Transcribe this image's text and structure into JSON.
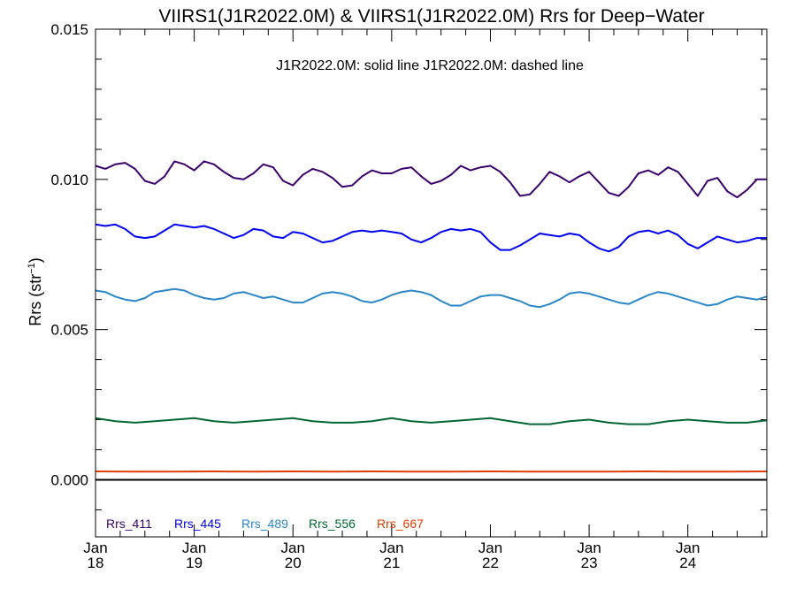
{
  "chart_data": {
    "type": "line",
    "title": "VIIRS1(J1R2022.0M) & VIIRS1(J1R2022.0M)  Rrs for Deep−Water",
    "subtitle": "J1R2022.0M: solid line   J1R2022.0M: dashed line",
    "ylabel": "Rrs (str",
    "ylabel_sup": "−1",
    "ylabel_close": ")",
    "xlim": [
      18,
      24.8
    ],
    "ylim": [
      -0.0019,
      0.015
    ],
    "yticks": [
      {
        "value": 0.0,
        "label": "0.000"
      },
      {
        "value": 0.005,
        "label": "0.005"
      },
      {
        "value": 0.01,
        "label": "0.010"
      },
      {
        "value": 0.015,
        "label": "0.015"
      }
    ],
    "xticks": [
      {
        "value": 18,
        "month": "Jan",
        "day": "18"
      },
      {
        "value": 19,
        "month": "Jan",
        "day": "19"
      },
      {
        "value": 20,
        "month": "Jan",
        "day": "20"
      },
      {
        "value": 21,
        "month": "Jan",
        "day": "21"
      },
      {
        "value": 22,
        "month": "Jan",
        "day": "22"
      },
      {
        "value": 23,
        "month": "Jan",
        "day": "23"
      },
      {
        "value": 24,
        "month": "Jan",
        "day": "24"
      }
    ],
    "zero_line": true,
    "grid": false,
    "legend_placement": "bottom-left",
    "series": [
      {
        "name": "Rrs_411",
        "color": "#3a006b",
        "x": [
          18.0,
          18.1,
          18.2,
          18.3,
          18.4,
          18.5,
          18.6,
          18.7,
          18.8,
          18.9,
          19.0,
          19.1,
          19.2,
          19.3,
          19.4,
          19.5,
          19.6,
          19.7,
          19.8,
          19.9,
          20.0,
          20.1,
          20.2,
          20.3,
          20.4,
          20.5,
          20.6,
          20.7,
          20.8,
          20.9,
          21.0,
          21.1,
          21.2,
          21.3,
          21.4,
          21.5,
          21.6,
          21.7,
          21.8,
          21.9,
          22.0,
          22.1,
          22.2,
          22.3,
          22.4,
          22.5,
          22.6,
          22.7,
          22.8,
          22.9,
          23.0,
          23.1,
          23.2,
          23.3,
          23.4,
          23.5,
          23.6,
          23.7,
          23.8,
          23.9,
          24.0,
          24.1,
          24.2,
          24.3,
          24.4,
          24.5,
          24.6,
          24.7,
          24.8
        ],
        "y": [
          0.01045,
          0.01035,
          0.0105,
          0.01055,
          0.01035,
          0.00995,
          0.00985,
          0.0101,
          0.0106,
          0.0105,
          0.0103,
          0.0106,
          0.0105,
          0.01025,
          0.01005,
          0.01,
          0.0102,
          0.0105,
          0.0104,
          0.00995,
          0.0098,
          0.01015,
          0.01035,
          0.01025,
          0.01005,
          0.00975,
          0.0098,
          0.0101,
          0.0103,
          0.0102,
          0.0102,
          0.01035,
          0.0104,
          0.0101,
          0.00985,
          0.00995,
          0.01015,
          0.01045,
          0.0103,
          0.0104,
          0.01045,
          0.01025,
          0.0099,
          0.00945,
          0.0095,
          0.00985,
          0.01025,
          0.0101,
          0.0099,
          0.0101,
          0.01025,
          0.0099,
          0.00955,
          0.00945,
          0.00975,
          0.0102,
          0.0103,
          0.01015,
          0.0104,
          0.01025,
          0.00985,
          0.00945,
          0.00995,
          0.01005,
          0.0096,
          0.0094,
          0.00965,
          0.01,
          0.01
        ]
      },
      {
        "name": "Rrs_445",
        "color": "#0000ee",
        "x": [
          18.0,
          18.1,
          18.2,
          18.3,
          18.4,
          18.5,
          18.6,
          18.7,
          18.8,
          18.9,
          19.0,
          19.1,
          19.2,
          19.3,
          19.4,
          19.5,
          19.6,
          19.7,
          19.8,
          19.9,
          20.0,
          20.1,
          20.2,
          20.3,
          20.4,
          20.5,
          20.6,
          20.7,
          20.8,
          20.9,
          21.0,
          21.1,
          21.2,
          21.3,
          21.4,
          21.5,
          21.6,
          21.7,
          21.8,
          21.9,
          22.0,
          22.1,
          22.2,
          22.3,
          22.4,
          22.5,
          22.6,
          22.7,
          22.8,
          22.9,
          23.0,
          23.1,
          23.2,
          23.3,
          23.4,
          23.5,
          23.6,
          23.7,
          23.8,
          23.9,
          24.0,
          24.1,
          24.2,
          24.3,
          24.4,
          24.5,
          24.6,
          24.7,
          24.8
        ],
        "y": [
          0.0085,
          0.00845,
          0.0085,
          0.00835,
          0.0081,
          0.00805,
          0.0081,
          0.0083,
          0.0085,
          0.00845,
          0.0084,
          0.00845,
          0.00835,
          0.0082,
          0.00805,
          0.00815,
          0.00835,
          0.0083,
          0.0081,
          0.00805,
          0.00825,
          0.0082,
          0.00805,
          0.0079,
          0.00795,
          0.0081,
          0.00825,
          0.0083,
          0.00825,
          0.0083,
          0.00825,
          0.0082,
          0.008,
          0.0079,
          0.00805,
          0.00825,
          0.00835,
          0.0083,
          0.00835,
          0.00825,
          0.0079,
          0.00765,
          0.00765,
          0.0078,
          0.008,
          0.0082,
          0.00815,
          0.0081,
          0.0082,
          0.00815,
          0.0079,
          0.0077,
          0.0076,
          0.00775,
          0.0081,
          0.00825,
          0.0083,
          0.0082,
          0.0083,
          0.00815,
          0.00785,
          0.0077,
          0.0079,
          0.0081,
          0.008,
          0.0079,
          0.00795,
          0.00805,
          0.00805
        ]
      },
      {
        "name": "Rrs_489",
        "color": "#2b86c8",
        "x": [
          18.0,
          18.1,
          18.2,
          18.3,
          18.4,
          18.5,
          18.6,
          18.7,
          18.8,
          18.9,
          19.0,
          19.1,
          19.2,
          19.3,
          19.4,
          19.5,
          19.6,
          19.7,
          19.8,
          19.9,
          20.0,
          20.1,
          20.2,
          20.3,
          20.4,
          20.5,
          20.6,
          20.7,
          20.8,
          20.9,
          21.0,
          21.1,
          21.2,
          21.3,
          21.4,
          21.5,
          21.6,
          21.7,
          21.8,
          21.9,
          22.0,
          22.1,
          22.2,
          22.3,
          22.4,
          22.5,
          22.6,
          22.7,
          22.8,
          22.9,
          23.0,
          23.1,
          23.2,
          23.3,
          23.4,
          23.5,
          23.6,
          23.7,
          23.8,
          23.9,
          24.0,
          24.1,
          24.2,
          24.3,
          24.4,
          24.5,
          24.6,
          24.7,
          24.8
        ],
        "y": [
          0.0063,
          0.00625,
          0.0061,
          0.006,
          0.00595,
          0.00605,
          0.00625,
          0.0063,
          0.00635,
          0.0063,
          0.00615,
          0.00605,
          0.006,
          0.00605,
          0.0062,
          0.00625,
          0.00615,
          0.00605,
          0.0061,
          0.006,
          0.0059,
          0.0059,
          0.00605,
          0.0062,
          0.00625,
          0.0062,
          0.0061,
          0.00595,
          0.0059,
          0.006,
          0.00615,
          0.00625,
          0.0063,
          0.00625,
          0.00615,
          0.00595,
          0.0058,
          0.0058,
          0.00595,
          0.0061,
          0.00615,
          0.00615,
          0.00605,
          0.00595,
          0.0058,
          0.00575,
          0.00585,
          0.006,
          0.0062,
          0.00625,
          0.0062,
          0.0061,
          0.006,
          0.0059,
          0.00585,
          0.006,
          0.00615,
          0.00625,
          0.0062,
          0.0061,
          0.006,
          0.0059,
          0.0058,
          0.00585,
          0.006,
          0.0061,
          0.00605,
          0.006,
          0.0061
        ]
      },
      {
        "name": "Rrs_556",
        "color": "#006633",
        "x": [
          18.0,
          18.2,
          18.4,
          18.6,
          18.8,
          19.0,
          19.2,
          19.4,
          19.6,
          19.8,
          20.0,
          20.2,
          20.4,
          20.6,
          20.8,
          21.0,
          21.2,
          21.4,
          21.6,
          21.8,
          22.0,
          22.2,
          22.4,
          22.6,
          22.8,
          23.0,
          23.2,
          23.4,
          23.6,
          23.8,
          24.0,
          24.2,
          24.4,
          24.6,
          24.8
        ],
        "y": [
          0.00205,
          0.00195,
          0.0019,
          0.00195,
          0.002,
          0.00205,
          0.00195,
          0.0019,
          0.00195,
          0.002,
          0.00205,
          0.00195,
          0.0019,
          0.0019,
          0.00195,
          0.00205,
          0.00195,
          0.0019,
          0.00195,
          0.002,
          0.00205,
          0.00195,
          0.00185,
          0.00185,
          0.00195,
          0.002,
          0.0019,
          0.00185,
          0.00185,
          0.00195,
          0.002,
          0.00195,
          0.0019,
          0.0019,
          0.00198
        ]
      },
      {
        "name": "Rrs_667",
        "color": "#e03c00",
        "x": [
          18.0,
          18.4,
          18.8,
          19.2,
          19.6,
          20.0,
          20.4,
          20.8,
          21.2,
          21.6,
          22.0,
          22.4,
          22.8,
          23.2,
          23.6,
          24.0,
          24.4,
          24.8
        ],
        "y": [
          0.00028,
          0.00027,
          0.00027,
          0.00028,
          0.00027,
          0.00028,
          0.00027,
          0.00028,
          0.00027,
          0.00027,
          0.00028,
          0.00027,
          0.00027,
          0.00027,
          0.00028,
          0.00027,
          0.00027,
          0.00028
        ]
      }
    ]
  }
}
